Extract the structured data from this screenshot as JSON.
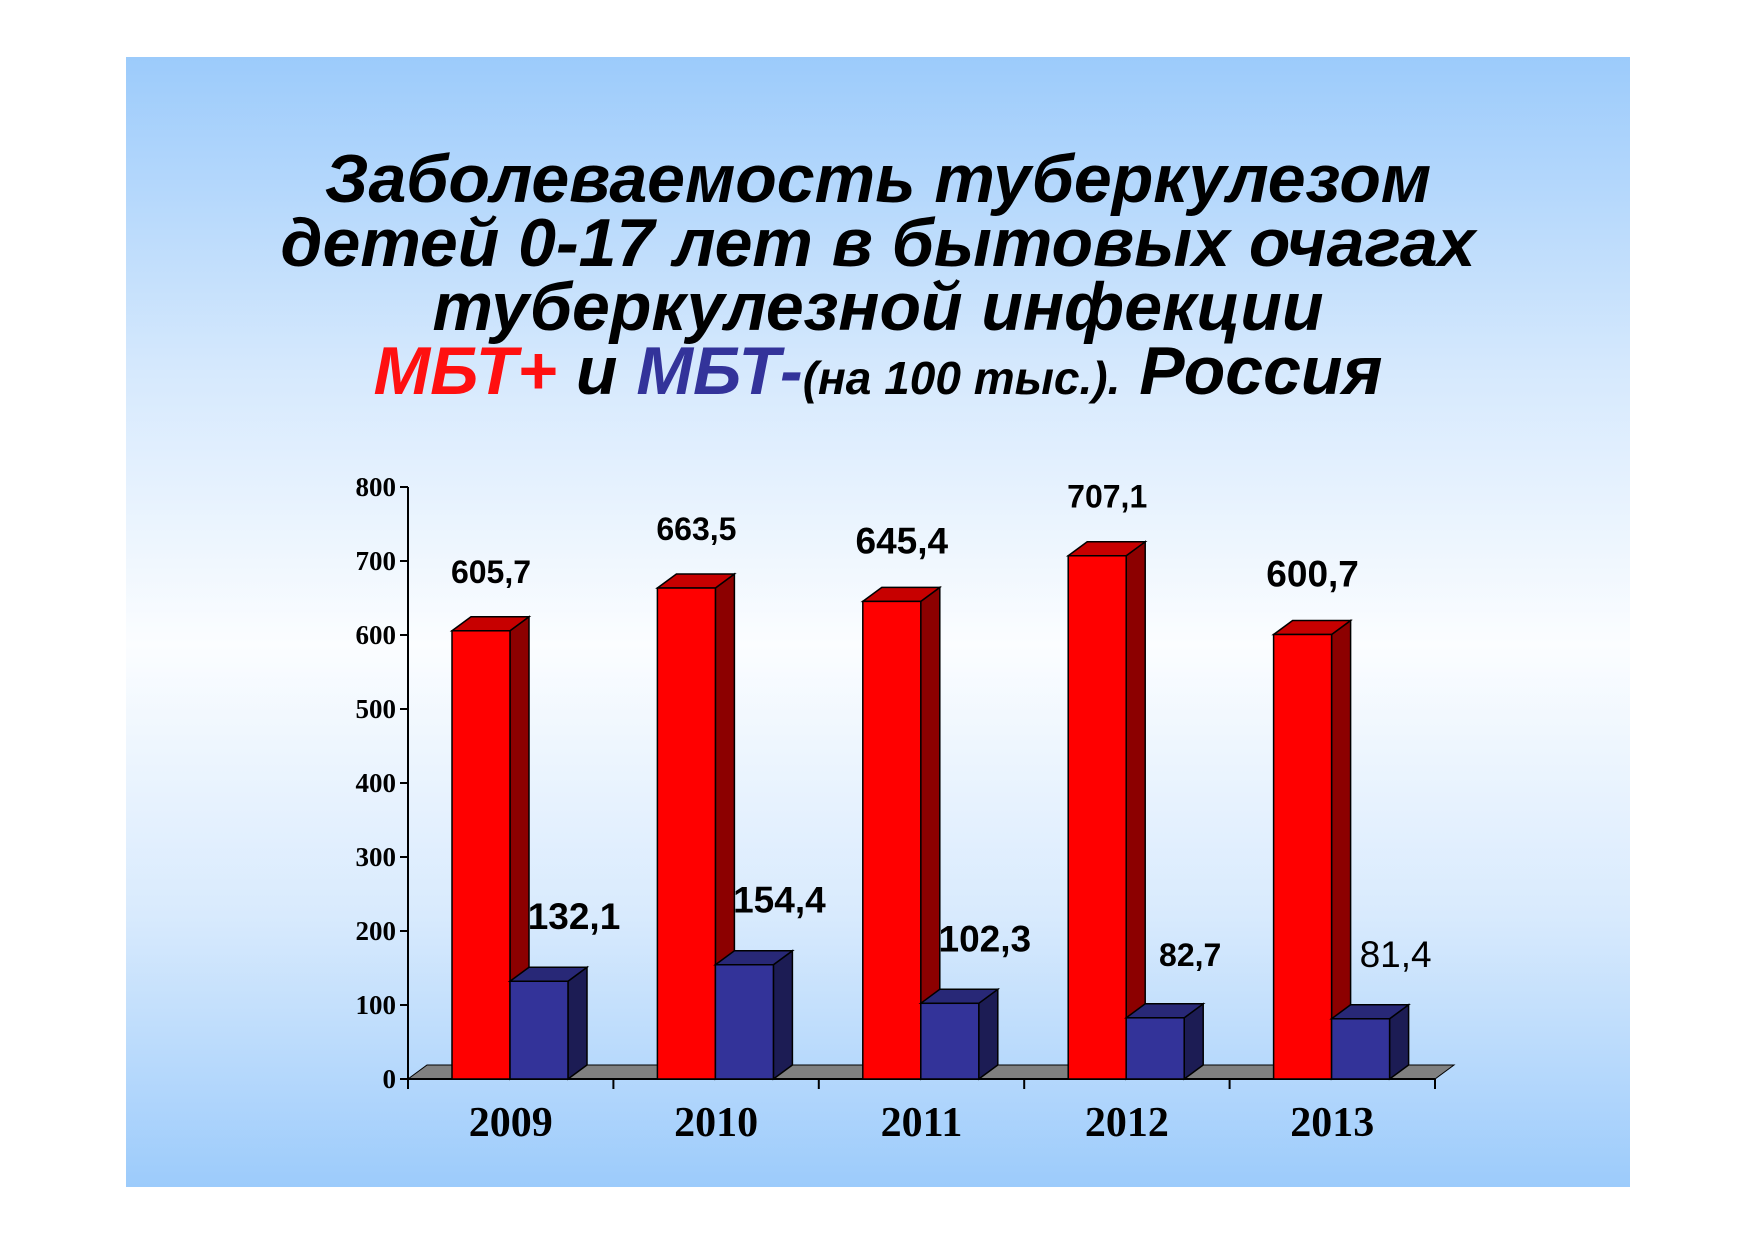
{
  "title": {
    "line1": "Заболеваемость туберкулезом",
    "line2": "детей 0-17 лет  в бытовых очагах",
    "line3": "туберкулезной  инфекции",
    "line4_red": "МБТ+",
    "line4_and": " и ",
    "line4_blue": "МБТ-",
    "line4_unit": "(на 100 тыс.).",
    "line4_region": " Россия"
  },
  "colors": {
    "red_series": "#ff0000",
    "blue_series": "#333399",
    "floor": "#808080"
  },
  "chart_data": {
    "type": "bar",
    "title": "Заболеваемость туберкулезом детей 0-17 лет в бытовых очагах туберкулезной инфекции МБТ+ и МБТ-(на 100 тыс.). Россия",
    "categories": [
      "2009",
      "2010",
      "2011",
      "2012",
      "2013"
    ],
    "series": [
      {
        "name": "МБТ+",
        "values": [
          605.7,
          663.5,
          645.4,
          707.1,
          600.7
        ],
        "labels": [
          "605,7",
          "663,5",
          "645,4",
          "707,1",
          "600,7"
        ]
      },
      {
        "name": "МБТ-",
        "values": [
          132.1,
          154.4,
          102.3,
          82.7,
          81.4
        ],
        "labels": [
          "132,1",
          "154,4",
          "102,3",
          "82,7",
          "81,4"
        ]
      }
    ],
    "ylim": [
      0,
      800
    ],
    "yticks": [
      "0",
      "100",
      "200",
      "300",
      "400",
      "500",
      "600",
      "700",
      "800"
    ],
    "xlabel": "",
    "ylabel": "",
    "style": "3d-clustered-columns"
  }
}
